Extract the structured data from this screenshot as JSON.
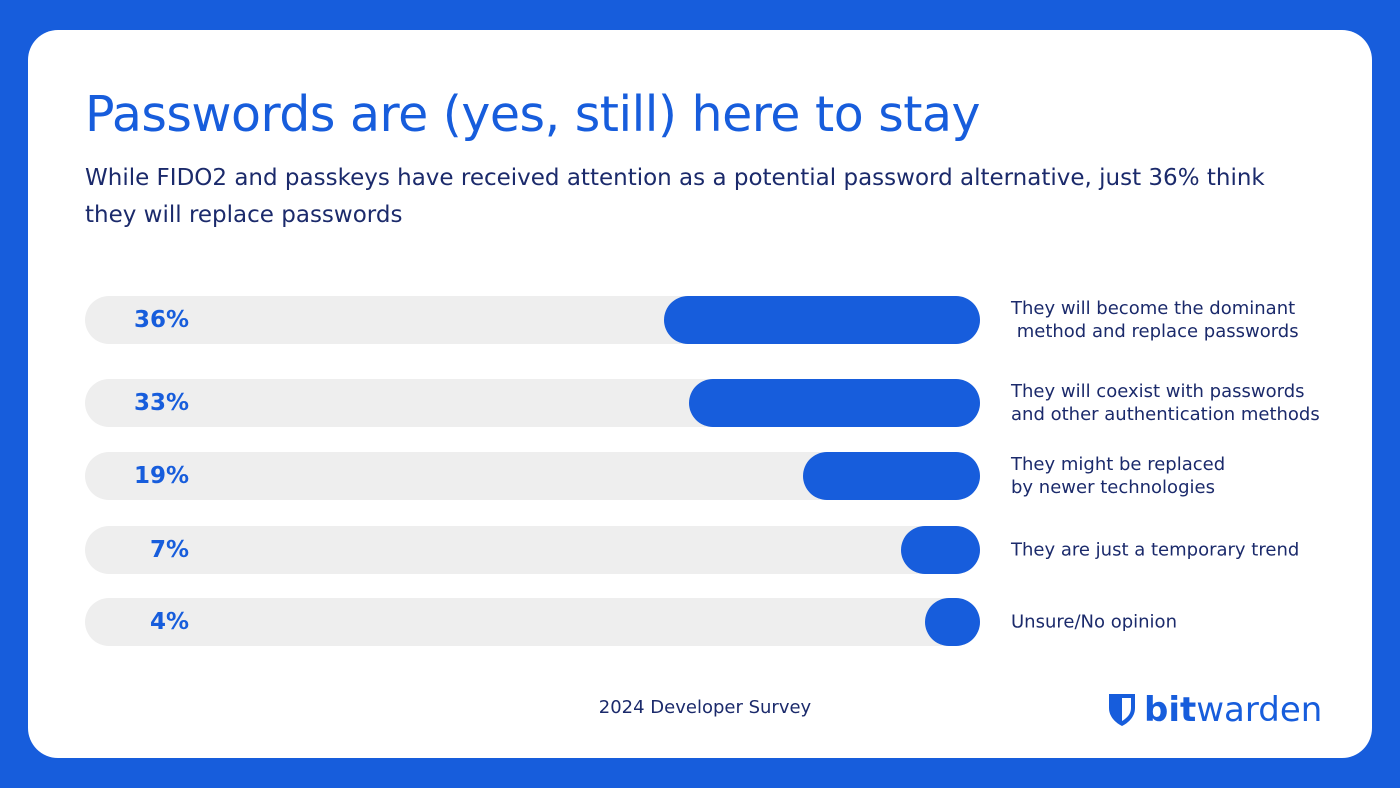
{
  "title": "Passwords are (yes, still) here to stay",
  "subtitle": "While FIDO2 and passkeys have received attention as a potential password alternative, just 36% think they will replace passwords",
  "footer": "2024 Developer Survey",
  "brand": {
    "name": "bitwarden",
    "bold_part": "bit",
    "light_part": "warden",
    "icon": "shield-icon",
    "color": "#175ddc"
  },
  "chart_data": {
    "type": "bar",
    "orientation": "horizontal",
    "categories": [
      "They will become the dominant\n method and replace passwords",
      "They will coexist with passwords\nand other authentication methods",
      "They might be replaced\nby newer technologies",
      "They are just a temporary trend",
      "Unsure/No opinion"
    ],
    "values": [
      36,
      33,
      19,
      7,
      4
    ],
    "value_labels": [
      "36%",
      "33%",
      "19%",
      "7%",
      "4%"
    ],
    "unit": "%",
    "bar_color": "#175ddc",
    "track_color": "#eeeeee",
    "grid": false
  }
}
